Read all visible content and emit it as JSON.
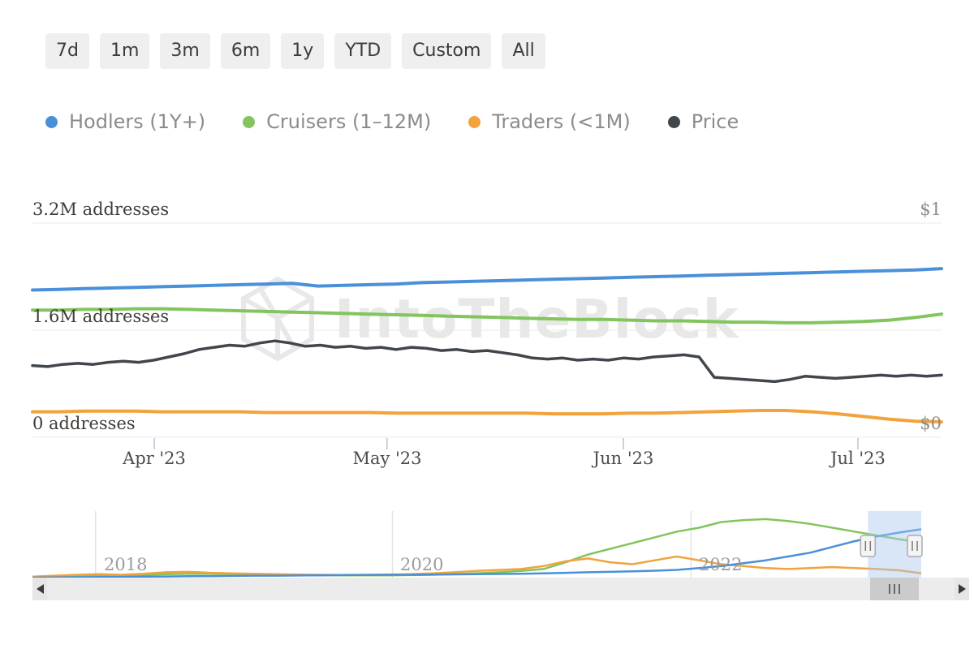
{
  "toolbar": {
    "ranges": [
      "7d",
      "1m",
      "3m",
      "6m",
      "1y",
      "YTD",
      "Custom",
      "All"
    ]
  },
  "legend": {
    "items": [
      {
        "label": "Hodlers (1Y+)",
        "color": "#4a90d9"
      },
      {
        "label": "Cruisers (1–12M)",
        "color": "#82c55e"
      },
      {
        "label": "Traders (<1M)",
        "color": "#f2a33c"
      },
      {
        "label": "Price",
        "color": "#41464c"
      }
    ]
  },
  "watermark": {
    "text": "IntoTheBlock"
  },
  "chart_data": [
    {
      "type": "line",
      "role": "main",
      "grid": "horizontal",
      "legend_position": "top",
      "x_ticks": [
        {
          "label": "Apr '23",
          "f": 0.134
        },
        {
          "label": "May '23",
          "f": 0.39
        },
        {
          "label": "Jun '23",
          "f": 0.65
        },
        {
          "label": "Jul '23",
          "f": 0.908
        }
      ],
      "left_axis": {
        "unit": "millions of addresses",
        "max": 3.2,
        "labels": [
          {
            "text": "3.2M addresses",
            "value_m": 3.2,
            "f": 0
          },
          {
            "text": "1.6M addresses",
            "value_m": 1.6,
            "f": 0.5
          },
          {
            "text": "0 addresses",
            "value_m": 0,
            "f": 1
          }
        ]
      },
      "right_axis": {
        "unit": "USD",
        "max": 1,
        "labels": [
          {
            "text": "$1",
            "value": 1,
            "f": 0
          },
          {
            "text": "$0",
            "value": 0,
            "f": 1
          }
        ]
      },
      "series": [
        {
          "name": "Hodlers (1Y+)",
          "color": "#4a90d9",
          "axis": "left",
          "values": [
            2.2,
            2.21,
            2.22,
            2.23,
            2.24,
            2.25,
            2.26,
            2.27,
            2.28,
            2.29,
            2.3,
            2.26,
            2.27,
            2.28,
            2.29,
            2.31,
            2.32,
            2.33,
            2.34,
            2.35,
            2.36,
            2.37,
            2.38,
            2.39,
            2.4,
            2.41,
            2.42,
            2.43,
            2.44,
            2.45,
            2.46,
            2.47,
            2.48,
            2.49,
            2.5,
            2.52
          ]
        },
        {
          "name": "Cruisers (1–12M)",
          "color": "#82c55e",
          "axis": "left",
          "values": [
            1.9,
            1.9,
            1.91,
            1.91,
            1.92,
            1.92,
            1.91,
            1.9,
            1.89,
            1.88,
            1.87,
            1.86,
            1.85,
            1.84,
            1.83,
            1.82,
            1.81,
            1.8,
            1.79,
            1.78,
            1.77,
            1.76,
            1.76,
            1.75,
            1.74,
            1.74,
            1.73,
            1.72,
            1.72,
            1.71,
            1.71,
            1.72,
            1.73,
            1.75,
            1.79,
            1.84
          ]
        },
        {
          "name": "Traders (<1M)",
          "color": "#f2a33c",
          "axis": "left",
          "values": [
            0.38,
            0.38,
            0.39,
            0.39,
            0.39,
            0.38,
            0.38,
            0.38,
            0.38,
            0.37,
            0.37,
            0.37,
            0.37,
            0.37,
            0.36,
            0.36,
            0.36,
            0.36,
            0.36,
            0.36,
            0.35,
            0.35,
            0.35,
            0.36,
            0.36,
            0.37,
            0.38,
            0.39,
            0.4,
            0.4,
            0.38,
            0.35,
            0.31,
            0.27,
            0.24,
            0.23
          ]
        },
        {
          "name": "Price",
          "color": "#41464c",
          "axis": "right",
          "values": [
            0.335,
            0.33,
            0.34,
            0.345,
            0.34,
            0.35,
            0.355,
            0.35,
            0.36,
            0.375,
            0.39,
            0.41,
            0.42,
            0.43,
            0.425,
            0.44,
            0.45,
            0.44,
            0.425,
            0.43,
            0.42,
            0.425,
            0.415,
            0.42,
            0.41,
            0.42,
            0.415,
            0.405,
            0.41,
            0.4,
            0.405,
            0.395,
            0.385,
            0.37,
            0.365,
            0.37,
            0.36,
            0.365,
            0.36,
            0.37,
            0.365,
            0.375,
            0.38,
            0.385,
            0.375,
            0.28,
            0.275,
            0.27,
            0.265,
            0.26,
            0.27,
            0.285,
            0.28,
            0.275,
            0.28,
            0.285,
            0.29,
            0.285,
            0.29,
            0.285,
            0.29
          ]
        }
      ]
    },
    {
      "type": "line",
      "role": "navigator-overview",
      "max_m": 3.3,
      "x_ticks": [
        {
          "label": "2018",
          "f": 0.071
        },
        {
          "label": "2020",
          "f": 0.405
        },
        {
          "label": "2022",
          "f": 0.741
        }
      ],
      "selection": {
        "from": 0.94,
        "to": 1.0
      },
      "series": [
        {
          "name": "Cruisers (1–12M)",
          "color": "#82c55e",
          "values": [
            0.02,
            0.05,
            0.08,
            0.1,
            0.12,
            0.15,
            0.18,
            0.2,
            0.2,
            0.18,
            0.17,
            0.15,
            0.14,
            0.13,
            0.12,
            0.12,
            0.12,
            0.13,
            0.15,
            0.18,
            0.22,
            0.28,
            0.35,
            0.45,
            0.8,
            1.2,
            1.5,
            1.8,
            2.1,
            2.4,
            2.6,
            2.9,
            3.0,
            3.05,
            2.95,
            2.8,
            2.6,
            2.4,
            2.2,
            2.0,
            1.84
          ]
        },
        {
          "name": "Traders (<1M)",
          "color": "#f2a33c",
          "values": [
            0.05,
            0.1,
            0.15,
            0.18,
            0.15,
            0.2,
            0.28,
            0.3,
            0.25,
            0.22,
            0.2,
            0.18,
            0.16,
            0.15,
            0.14,
            0.15,
            0.16,
            0.18,
            0.22,
            0.28,
            0.35,
            0.4,
            0.45,
            0.6,
            0.85,
            1.0,
            0.8,
            0.7,
            0.9,
            1.1,
            0.9,
            0.7,
            0.6,
            0.5,
            0.45,
            0.5,
            0.55,
            0.5,
            0.45,
            0.38,
            0.23
          ]
        },
        {
          "name": "Hodlers (1Y+)",
          "color": "#4a90d9",
          "values": [
            0.0,
            0.01,
            0.02,
            0.03,
            0.04,
            0.05,
            0.06,
            0.07,
            0.08,
            0.09,
            0.1,
            0.1,
            0.11,
            0.12,
            0.13,
            0.14,
            0.15,
            0.15,
            0.16,
            0.17,
            0.18,
            0.19,
            0.2,
            0.22,
            0.25,
            0.28,
            0.3,
            0.33,
            0.36,
            0.4,
            0.5,
            0.6,
            0.75,
            0.9,
            1.1,
            1.3,
            1.6,
            1.9,
            2.15,
            2.35,
            2.52
          ]
        }
      ]
    }
  ]
}
